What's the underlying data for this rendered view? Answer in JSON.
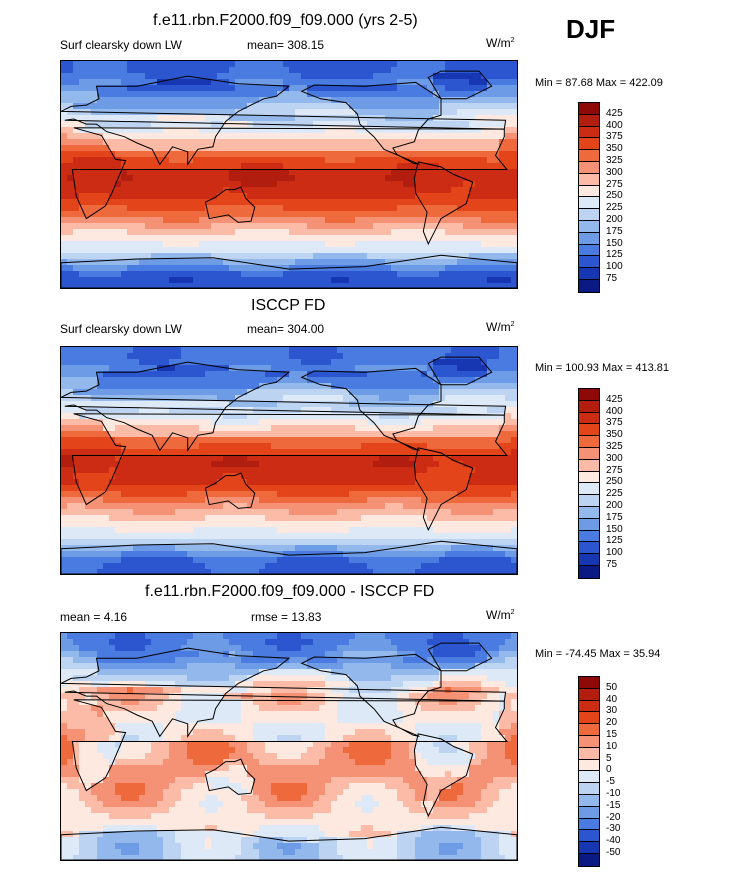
{
  "season": "DJF",
  "panels": [
    {
      "title": "f.e11.rbn.F2000.f09_f09.000 (yrs 2-5)",
      "left_label": "Surf clearsky down LW",
      "center_label": "mean= 308.15",
      "units_base": "W/m",
      "units_exp": "2",
      "min_label": "Min =",
      "min_value": "87.68",
      "max_label": "Max =",
      "max_value": "422.09",
      "colorbar_labels": [
        "425",
        "400",
        "375",
        "350",
        "325",
        "300",
        "275",
        "250",
        "225",
        "200",
        "175",
        "150",
        "125",
        "100",
        "75"
      ]
    },
    {
      "title": "ISCCP FD",
      "left_label": "Surf clearsky down LW",
      "center_label": "mean= 304.00",
      "units_base": "W/m",
      "units_exp": "2",
      "min_label": "Min =",
      "min_value": "100.93",
      "max_label": "Max =",
      "max_value": "413.81",
      "colorbar_labels": [
        "425",
        "400",
        "375",
        "350",
        "325",
        "300",
        "275",
        "250",
        "225",
        "200",
        "175",
        "150",
        "125",
        "100",
        "75"
      ]
    },
    {
      "title": "f.e11.rbn.F2000.f09_f09.000 - ISCCP FD",
      "left_label": "mean =   4.16",
      "center_label": "rmse =  13.83",
      "units_base": "W/m",
      "units_exp": "2",
      "min_label": "Min =",
      "min_value": "-74.45",
      "max_label": "Max =",
      "max_value": "35.94",
      "colorbar_labels": [
        "50",
        "40",
        "30",
        "20",
        "15",
        "10",
        "5",
        "0",
        "-5",
        "-10",
        "-15",
        "-20",
        "-30",
        "-40",
        "-50"
      ]
    }
  ],
  "colorbar_colors": [
    "#8e0a08",
    "#b11d0f",
    "#cc2c14",
    "#e44419",
    "#ee6a3d",
    "#f59276",
    "#fbbba6",
    "#fde9df",
    "#dde9f6",
    "#bcd3f2",
    "#93b8ec",
    "#6d9be6",
    "#4a7be0",
    "#2b56d0",
    "#1737b2",
    "#0a1a82"
  ],
  "chart_data": [
    {
      "type": "heatmap",
      "title": "f.e11.rbn.F2000.f09_f09.000 (yrs 2-5)",
      "variable": "Surf clearsky down LW",
      "units": "W/m2",
      "mean": 308.15,
      "min": 87.68,
      "max": 422.09,
      "levels": [
        75,
        100,
        125,
        150,
        175,
        200,
        225,
        250,
        275,
        300,
        325,
        350,
        375,
        400,
        425
      ],
      "zonal_pattern": [
        {
          "lat": 80,
          "value": 120
        },
        {
          "lat": 60,
          "value": 190
        },
        {
          "lat": 40,
          "value": 260
        },
        {
          "lat": 20,
          "value": 350
        },
        {
          "lat": 0,
          "value": 400
        },
        {
          "lat": -20,
          "value": 380
        },
        {
          "lat": -40,
          "value": 300
        },
        {
          "lat": -60,
          "value": 230
        },
        {
          "lat": -80,
          "value": 110
        }
      ]
    },
    {
      "type": "heatmap",
      "title": "ISCCP FD",
      "variable": "Surf clearsky down LW",
      "units": "W/m2",
      "mean": 304.0,
      "min": 100.93,
      "max": 413.81,
      "levels": [
        75,
        100,
        125,
        150,
        175,
        200,
        225,
        250,
        275,
        300,
        325,
        350,
        375,
        400,
        425
      ],
      "zonal_pattern": [
        {
          "lat": 80,
          "value": 130
        },
        {
          "lat": 60,
          "value": 185
        },
        {
          "lat": 40,
          "value": 255
        },
        {
          "lat": 20,
          "value": 340
        },
        {
          "lat": 0,
          "value": 395
        },
        {
          "lat": -20,
          "value": 375
        },
        {
          "lat": -40,
          "value": 295
        },
        {
          "lat": -60,
          "value": 235
        },
        {
          "lat": -80,
          "value": 120
        }
      ]
    },
    {
      "type": "heatmap",
      "title": "f.e11.rbn.F2000.f09_f09.000 - ISCCP FD",
      "units": "W/m2",
      "mean": 4.16,
      "rmse": 13.83,
      "min": -74.45,
      "max": 35.94,
      "levels": [
        -50,
        -40,
        -30,
        -20,
        -15,
        -10,
        -5,
        0,
        5,
        10,
        15,
        20,
        30,
        40,
        50
      ],
      "zonal_pattern": [
        {
          "lat": 80,
          "value": -25
        },
        {
          "lat": 60,
          "value": -5
        },
        {
          "lat": 40,
          "value": 12
        },
        {
          "lat": 20,
          "value": 8
        },
        {
          "lat": 0,
          "value": 10
        },
        {
          "lat": -20,
          "value": 12
        },
        {
          "lat": -40,
          "value": 8
        },
        {
          "lat": -60,
          "value": 2
        },
        {
          "lat": -80,
          "value": 0
        }
      ]
    }
  ]
}
